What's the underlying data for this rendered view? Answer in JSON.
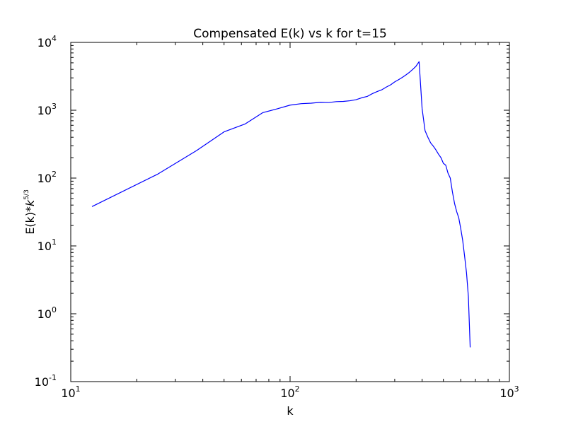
{
  "chart_data": {
    "type": "line",
    "title": "Compensated E(k) vs k for t=15",
    "xlabel": "k",
    "ylabel": "E(k)*k^5/3",
    "xscale": "log",
    "yscale": "log",
    "xlim": [
      10,
      1000
    ],
    "ylim": [
      0.1,
      10000
    ],
    "grid": false,
    "x_ticks": [
      {
        "value": 10,
        "base": "10",
        "exp": "1"
      },
      {
        "value": 100,
        "base": "10",
        "exp": "2"
      },
      {
        "value": 1000,
        "base": "10",
        "exp": "3"
      }
    ],
    "y_ticks": [
      {
        "value": 0.1,
        "base": "10",
        "exp": "-1"
      },
      {
        "value": 1,
        "base": "10",
        "exp": "0"
      },
      {
        "value": 10,
        "base": "10",
        "exp": "1"
      },
      {
        "value": 100,
        "base": "10",
        "exp": "2"
      },
      {
        "value": 1000,
        "base": "10",
        "exp": "3"
      },
      {
        "value": 10000,
        "base": "10",
        "exp": "4"
      }
    ],
    "series": [
      {
        "color": "#0000ff",
        "points": [
          [
            12.5,
            38
          ],
          [
            25,
            115
          ],
          [
            37.5,
            255
          ],
          [
            50,
            480
          ],
          [
            62.5,
            630
          ],
          [
            75,
            920
          ],
          [
            87.5,
            1050
          ],
          [
            100,
            1190
          ],
          [
            112.5,
            1250
          ],
          [
            125,
            1270
          ],
          [
            137.5,
            1310
          ],
          [
            150,
            1300
          ],
          [
            162.5,
            1340
          ],
          [
            175,
            1350
          ],
          [
            187.5,
            1380
          ],
          [
            200,
            1430
          ],
          [
            212.5,
            1530
          ],
          [
            225,
            1600
          ],
          [
            237.5,
            1760
          ],
          [
            250,
            1890
          ],
          [
            262.5,
            2010
          ],
          [
            275,
            2200
          ],
          [
            287.5,
            2370
          ],
          [
            300,
            2620
          ],
          [
            312.5,
            2820
          ],
          [
            325,
            3050
          ],
          [
            337.5,
            3320
          ],
          [
            350,
            3620
          ],
          [
            362.5,
            4000
          ],
          [
            375,
            4450
          ],
          [
            387.5,
            5200
          ],
          [
            400,
            1050
          ],
          [
            412.5,
            500
          ],
          [
            425,
            400
          ],
          [
            437.5,
            330
          ],
          [
            450,
            295
          ],
          [
            462.5,
            260
          ],
          [
            475,
            225
          ],
          [
            487.5,
            200
          ],
          [
            500,
            165
          ],
          [
            512.5,
            155
          ],
          [
            525,
            118
          ],
          [
            537.5,
            100
          ],
          [
            550,
            62
          ],
          [
            562.5,
            42
          ],
          [
            575,
            32
          ],
          [
            587.5,
            26
          ],
          [
            600,
            18
          ],
          [
            612.5,
            12
          ],
          [
            625,
            7
          ],
          [
            637.5,
            4
          ],
          [
            650,
            1.8
          ],
          [
            662.5,
            0.32
          ]
        ]
      }
    ]
  }
}
